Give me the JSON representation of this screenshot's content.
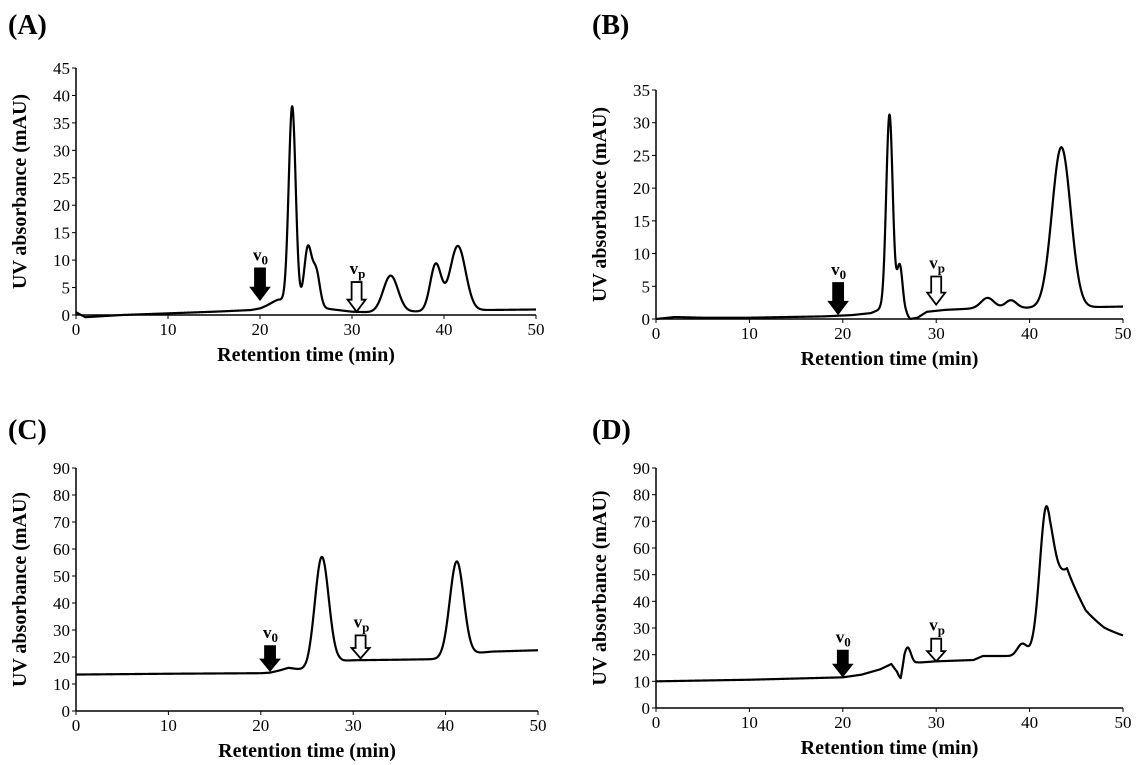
{
  "chart_data": [
    {
      "panel": "(A)",
      "type": "line",
      "xlabel": "Retention time (min)",
      "ylabel": "UV absorbance (mAU)",
      "xlim": [
        0,
        50
      ],
      "ylim": [
        0,
        45
      ],
      "xticks": [
        0,
        10,
        20,
        30,
        40,
        50
      ],
      "yticks": [
        0,
        5,
        10,
        15,
        20,
        25,
        30,
        35,
        40,
        45
      ],
      "grid": false,
      "baseline": [
        [
          0,
          0.5
        ],
        [
          1,
          -0.4
        ],
        [
          2,
          -0.3
        ],
        [
          5,
          0
        ],
        [
          10,
          0.3
        ],
        [
          15,
          0.6
        ],
        [
          19,
          0.9
        ],
        [
          20,
          1.2
        ],
        [
          21,
          1.8
        ],
        [
          22,
          2.3
        ]
      ],
      "peaks": [
        {
          "center": 22.0,
          "width": 0.7,
          "height": 0.5
        },
        {
          "center": 23.5,
          "width": 0.38,
          "height": 36.0
        },
        {
          "center": 25.2,
          "width": 0.4,
          "height": 10.5
        },
        {
          "center": 26.1,
          "width": 0.4,
          "height": 6.5
        },
        {
          "center": 34.2,
          "width": 0.8,
          "height": 6.6
        },
        {
          "center": 39.1,
          "width": 0.6,
          "height": 8.5
        },
        {
          "center": 41.5,
          "width": 0.85,
          "height": 11.8
        }
      ],
      "tail_baseline": [
        [
          22,
          2.3
        ],
        [
          28,
          1.0
        ],
        [
          30,
          0.6
        ],
        [
          32,
          0.5
        ],
        [
          35,
          0.6
        ],
        [
          40,
          0.7
        ],
        [
          44,
          0.9
        ],
        [
          50,
          1.0
        ]
      ],
      "markers": [
        {
          "label": "v",
          "sub": "0",
          "x": 20,
          "y_top": 8.5,
          "y_bottom": 2.8,
          "filled": true
        },
        {
          "label": "v",
          "sub": "p",
          "x": 30.5,
          "y_top": 6.0,
          "y_bottom": 0.6,
          "filled": false
        }
      ]
    },
    {
      "panel": "(B)",
      "type": "line",
      "xlabel": "Retention time (min)",
      "ylabel": "UV absorbance (mAU)",
      "xlim": [
        0,
        50
      ],
      "ylim": [
        0,
        35
      ],
      "xticks": [
        0,
        10,
        20,
        30,
        40,
        50
      ],
      "yticks": [
        0,
        5,
        10,
        15,
        20,
        25,
        30,
        35
      ],
      "grid": false,
      "baseline": [
        [
          0,
          0
        ],
        [
          2,
          0.3
        ],
        [
          5,
          0.2
        ],
        [
          10,
          0.2
        ],
        [
          18,
          0.4
        ],
        [
          21,
          0.6
        ],
        [
          23,
          0.9
        ],
        [
          24,
          1.5
        ]
      ],
      "peaks": [
        {
          "center": 25.0,
          "width": 0.35,
          "height": 30.0
        },
        {
          "center": 26.1,
          "width": 0.3,
          "height": 7.2
        },
        {
          "center": 35.5,
          "width": 0.7,
          "height": 1.6
        },
        {
          "center": 38.0,
          "width": 0.6,
          "height": 1.2
        },
        {
          "center": 43.4,
          "width": 1.0,
          "height": 24.5
        }
      ],
      "tail_baseline": [
        [
          24,
          1.5
        ],
        [
          26.8,
          0.8
        ],
        [
          27.2,
          0.0
        ],
        [
          28,
          0.2
        ],
        [
          29,
          1.1
        ],
        [
          31,
          1.4
        ],
        [
          34,
          1.6
        ],
        [
          40,
          1.7
        ],
        [
          46,
          1.8
        ],
        [
          50,
          1.9
        ]
      ],
      "markers": [
        {
          "label": "v",
          "sub": "0",
          "x": 19.5,
          "y_top": 5.5,
          "y_bottom": 0.8,
          "filled": true
        },
        {
          "label": "v",
          "sub": "p",
          "x": 30.0,
          "y_top": 6.5,
          "y_bottom": 2.2,
          "filled": false
        }
      ]
    },
    {
      "panel": "(C)",
      "type": "line",
      "xlabel": "Retention time (min)",
      "ylabel": "UV absorbance (mAU)",
      "xlim": [
        0,
        50
      ],
      "ylim": [
        0,
        90
      ],
      "xticks": [
        0,
        10,
        20,
        30,
        40,
        50
      ],
      "yticks": [
        0,
        10,
        20,
        30,
        40,
        50,
        60,
        70,
        80,
        90
      ],
      "grid": false,
      "baseline": [
        [
          0,
          13.5
        ],
        [
          10,
          13.8
        ],
        [
          20,
          14.0
        ],
        [
          21,
          14.2
        ],
        [
          22,
          15.0
        ],
        [
          23,
          16.0
        ],
        [
          24,
          15.5
        ],
        [
          25,
          15.0
        ]
      ],
      "peaks": [
        {
          "center": 26.6,
          "width": 0.75,
          "height": 40.0
        },
        {
          "center": 41.2,
          "width": 0.75,
          "height": 35.0
        }
      ],
      "tail_baseline": [
        [
          25,
          15.0
        ],
        [
          26.5,
          17.0
        ],
        [
          28.5,
          18.5
        ],
        [
          30,
          18.8
        ],
        [
          35,
          19.0
        ],
        [
          39,
          19.2
        ],
        [
          40,
          19.5
        ],
        [
          42,
          21.0
        ],
        [
          45,
          22.0
        ],
        [
          50,
          22.5
        ]
      ],
      "markers": [
        {
          "label": "v",
          "sub": "0",
          "x": 21,
          "y_top": 24.0,
          "y_bottom": 15.0,
          "filled": true
        },
        {
          "label": "v",
          "sub": "p",
          "x": 30.8,
          "y_top": 28.0,
          "y_bottom": 19.5,
          "filled": false
        }
      ]
    },
    {
      "panel": "(D)",
      "type": "line",
      "xlabel": "Retention time (min)",
      "ylabel": "UV absorbance (mAU)",
      "xlim": [
        0,
        50
      ],
      "ylim": [
        0,
        90
      ],
      "xticks": [
        0,
        10,
        20,
        30,
        40,
        50
      ],
      "yticks": [
        0,
        10,
        20,
        30,
        40,
        50,
        60,
        70,
        80,
        90
      ],
      "grid": false,
      "baseline": [
        [
          0,
          10.0
        ],
        [
          10,
          10.6
        ],
        [
          20,
          11.5
        ],
        [
          22,
          12.5
        ],
        [
          24,
          14.5
        ],
        [
          25.2,
          16.5
        ],
        [
          25.8,
          13.5
        ],
        [
          26.2,
          9.5
        ],
        [
          26.6,
          14.0
        ]
      ],
      "peaks": [
        {
          "center": 26.9,
          "width": 0.4,
          "height": 8.0
        },
        {
          "center": 39.2,
          "width": 0.5,
          "height": 4.0
        },
        {
          "center": 41.8,
          "width": 0.7,
          "height": 52.0
        }
      ],
      "tail_baseline": [
        [
          26.6,
          14.0
        ],
        [
          28,
          17.0
        ],
        [
          30,
          17.5
        ],
        [
          34,
          18.0
        ],
        [
          35,
          19.5
        ],
        [
          38,
          19.5
        ],
        [
          40,
          20.5
        ],
        [
          42,
          24.0
        ],
        [
          44,
          40.0
        ],
        [
          46,
          31.0
        ],
        [
          48,
          27.5
        ],
        [
          50,
          26.0
        ]
      ],
      "markers": [
        {
          "label": "v",
          "sub": "0",
          "x": 20,
          "y_top": 21.5,
          "y_bottom": 12.0,
          "filled": true
        },
        {
          "label": "v",
          "sub": "p",
          "x": 30,
          "y_top": 26.0,
          "y_bottom": 17.5,
          "filled": false
        }
      ]
    }
  ]
}
